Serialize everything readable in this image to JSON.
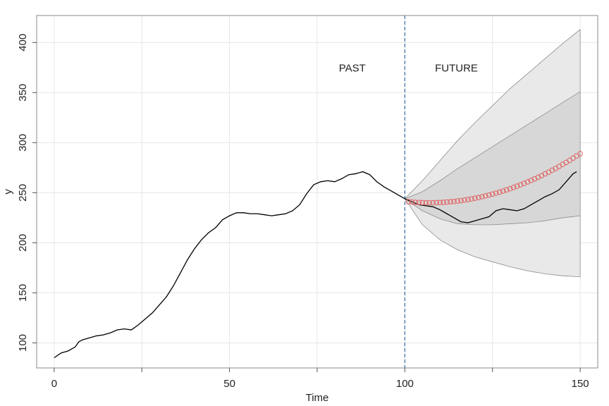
{
  "chart_data": {
    "type": "forecast",
    "x_label": "Time",
    "y_label": "y",
    "xlim": [
      -5,
      155
    ],
    "ylim": [
      75,
      427
    ],
    "xticks": [
      0,
      50,
      100,
      150
    ],
    "xminor_ticks": [
      25,
      75,
      125
    ],
    "yticks": [
      100,
      150,
      200,
      250,
      300,
      350,
      400
    ],
    "grid": true,
    "vline": {
      "x": 100,
      "color": "#3a6ea5"
    },
    "annotations": [
      {
        "text": "PAST",
        "x": 85,
        "y": 374
      },
      {
        "text": "FUTURE",
        "x": 114.7,
        "y": 374
      }
    ],
    "bands": [
      {
        "color": "#e9e9e9",
        "x": [
          100,
          105,
          110,
          115,
          120,
          125,
          130,
          135,
          140,
          145,
          150
        ],
        "upper": [
          244,
          262,
          282,
          302,
          320,
          337,
          354,
          369,
          384,
          399,
          413
        ],
        "lower": [
          244,
          218,
          203,
          193,
          186,
          181,
          176,
          172,
          169,
          167,
          166
        ]
      },
      {
        "color": "#d7d7d7",
        "x": [
          100,
          105,
          110,
          115,
          120,
          125,
          130,
          135,
          140,
          145,
          150
        ],
        "upper": [
          244,
          251,
          262,
          274,
          285,
          296,
          307,
          318,
          329,
          340,
          351
        ],
        "lower": [
          244,
          232,
          224,
          219,
          218,
          218,
          219,
          220,
          222,
          225,
          227
        ]
      }
    ],
    "series": [
      {
        "style": "line",
        "color": "#000000",
        "x": [
          0,
          2,
          4,
          6,
          7,
          8,
          10,
          12,
          14,
          16,
          18,
          20,
          22,
          24,
          26,
          28,
          30,
          32,
          34,
          36,
          38,
          40,
          42,
          44,
          46,
          48,
          50,
          52,
          54,
          56,
          58,
          60,
          62,
          64,
          66,
          68,
          70,
          72,
          74,
          76,
          78,
          80,
          82,
          84,
          86,
          88,
          90,
          92,
          94,
          96,
          98,
          100,
          102,
          104,
          106,
          108,
          110,
          112,
          114,
          116,
          118,
          120,
          122,
          124,
          126,
          128,
          130,
          132,
          134,
          136,
          138,
          140,
          142,
          144,
          146,
          148,
          149
        ],
        "values": [
          85.2,
          90,
          92,
          96,
          101,
          103,
          105,
          107,
          108,
          110,
          113,
          114,
          113,
          118,
          124,
          130,
          138,
          146,
          157,
          170,
          183,
          194,
          203,
          210,
          215,
          223,
          227,
          230,
          230,
          229,
          229,
          228,
          227,
          228,
          229,
          232,
          238,
          249,
          258,
          261,
          262,
          261,
          264,
          268,
          269,
          271,
          268,
          261,
          256,
          252,
          248,
          244,
          241,
          238,
          237,
          236,
          233,
          229,
          225,
          221,
          220,
          222,
          224,
          226,
          232,
          234,
          233,
          232,
          234,
          238,
          242,
          246,
          249,
          253,
          261,
          269,
          271
        ]
      },
      {
        "style": "points",
        "color": "#e06060",
        "x": [
          101,
          102,
          103,
          104,
          105,
          106,
          107,
          108,
          109,
          110,
          111,
          112,
          113,
          114,
          115,
          116,
          117,
          118,
          119,
          120,
          121,
          122,
          123,
          124,
          125,
          126,
          127,
          128,
          129,
          130,
          131,
          132,
          133,
          134,
          135,
          136,
          137,
          138,
          139,
          140,
          141,
          142,
          143,
          144,
          145,
          146,
          147,
          148,
          149,
          150
        ],
        "values": [
          241.0,
          240.7,
          240.4,
          240.2,
          240.1,
          240.0,
          240.0,
          240.0,
          240.1,
          240.2,
          240.4,
          240.7,
          241.0,
          241.3,
          241.7,
          242.1,
          242.7,
          243.2,
          243.8,
          244.5,
          245.2,
          246.0,
          246.8,
          247.7,
          248.6,
          249.6,
          250.6,
          251.7,
          252.8,
          254.0,
          255.3,
          256.6,
          257.9,
          259.3,
          260.8,
          262.3,
          263.9,
          265.5,
          267.1,
          268.9,
          270.6,
          272.5,
          274.3,
          276.3,
          278.3,
          280.3,
          282.4,
          284.6,
          286.8,
          289.0
        ]
      }
    ]
  }
}
